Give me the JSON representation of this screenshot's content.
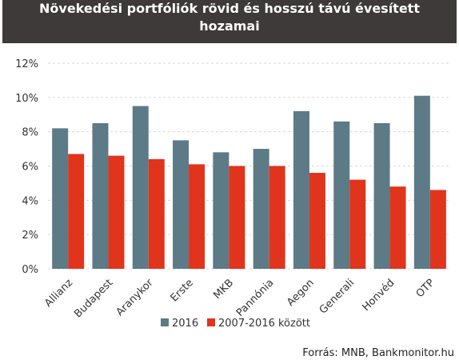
{
  "chart_data": {
    "type": "bar",
    "title_lines": [
      "Növekedési portfóliók rövid és hosszú távú évesített",
      "hozamai"
    ],
    "categories": [
      "Allianz",
      "Budapest",
      "Aranykor",
      "Erste",
      "MKB",
      "Pannónia",
      "Aegon",
      "Generali",
      "Honvéd",
      "OTP"
    ],
    "series": [
      {
        "name": "2016",
        "color": "#5d7a87",
        "values": [
          8.2,
          8.5,
          9.5,
          7.5,
          6.8,
          7.0,
          9.2,
          8.6,
          8.5,
          10.1
        ]
      },
      {
        "name": "2007-2016 között",
        "color": "#e0341c",
        "values": [
          6.7,
          6.6,
          6.4,
          6.1,
          6.0,
          6.0,
          5.6,
          5.2,
          4.8,
          4.6
        ]
      }
    ],
    "ylim": [
      0,
      12
    ],
    "yticks": [
      0,
      2,
      4,
      6,
      8,
      10,
      12
    ],
    "ytick_labels": [
      "0%",
      "2%",
      "4%",
      "6%",
      "8%",
      "10%",
      "12%"
    ],
    "xlabel": "",
    "ylabel": "",
    "grid": "horizontal-dashed",
    "legend_position": "bottom-center",
    "source": "Forrás: MNB, Bankmonitor.hu"
  }
}
